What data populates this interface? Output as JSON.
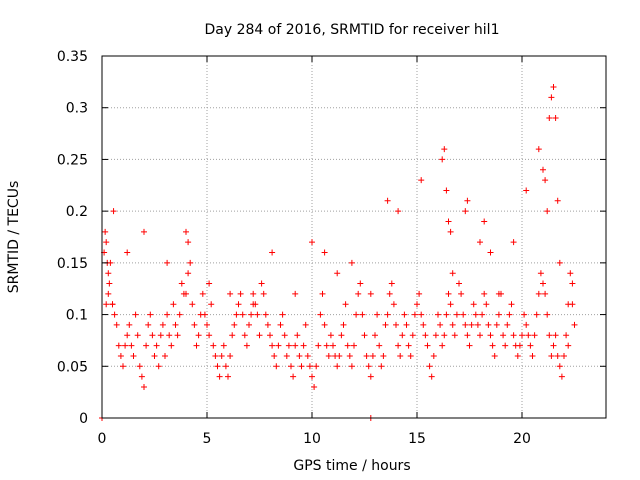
{
  "chart_data": {
    "type": "scatter",
    "title": "Day 284 of 2016, SRMTID for receiver hil1",
    "xlabel": "GPS time / hours",
    "ylabel": "SRMTID / TECUs",
    "xlim": [
      0,
      24
    ],
    "ylim": [
      0,
      0.35
    ],
    "xticks": [
      0,
      5,
      10,
      15,
      20
    ],
    "yticks": [
      0,
      0.05,
      0.1,
      0.15,
      0.2,
      0.25,
      0.3,
      0.35
    ],
    "xtick_labels": [
      "0",
      "5",
      "10",
      "15",
      "20"
    ],
    "ytick_labels": [
      "0",
      "0.05",
      "0.1",
      "0.15",
      "0.2",
      "0.25",
      "0.3",
      "0.35"
    ],
    "grid": true,
    "marker": "+",
    "color": "#ff0000",
    "series": [
      {
        "name": "SRMTID",
        "x": [
          0.0,
          0.1,
          0.15,
          0.2,
          0.25,
          0.3,
          0.35,
          0.4,
          0.5,
          0.55,
          0.6,
          0.7,
          0.8,
          0.9,
          1.0,
          1.1,
          1.2,
          1.3,
          1.4,
          1.5,
          1.6,
          1.7,
          1.8,
          1.9,
          2.0,
          2.1,
          2.2,
          2.3,
          2.4,
          2.5,
          2.6,
          2.7,
          2.8,
          2.9,
          3.0,
          3.1,
          3.2,
          3.3,
          3.4,
          3.5,
          3.6,
          3.7,
          3.8,
          3.9,
          4.0,
          4.1,
          4.2,
          4.3,
          4.4,
          4.5,
          4.6,
          4.7,
          4.8,
          4.9,
          5.0,
          5.1,
          5.2,
          5.3,
          5.4,
          5.5,
          5.6,
          5.7,
          5.8,
          5.9,
          6.0,
          6.1,
          6.2,
          6.3,
          6.4,
          6.5,
          6.6,
          6.7,
          6.8,
          6.9,
          7.0,
          7.1,
          7.2,
          7.3,
          7.4,
          7.5,
          7.6,
          7.7,
          7.8,
          7.9,
          8.0,
          8.1,
          8.2,
          8.3,
          8.4,
          8.5,
          8.6,
          8.7,
          8.8,
          8.9,
          9.0,
          9.1,
          9.2,
          9.3,
          9.4,
          9.5,
          9.6,
          9.7,
          9.8,
          9.9,
          10.0,
          10.1,
          10.2,
          10.3,
          10.4,
          10.5,
          10.6,
          10.7,
          10.8,
          10.9,
          11.0,
          11.1,
          11.2,
          11.3,
          11.4,
          11.5,
          11.6,
          11.7,
          11.8,
          11.9,
          12.0,
          12.1,
          12.2,
          12.3,
          12.4,
          12.5,
          12.6,
          12.7,
          12.8,
          12.9,
          13.0,
          13.1,
          13.2,
          13.3,
          13.4,
          13.5,
          13.6,
          13.7,
          13.8,
          13.9,
          14.0,
          14.1,
          14.2,
          14.3,
          14.4,
          14.5,
          14.6,
          14.7,
          14.8,
          14.9,
          15.0,
          15.1,
          15.2,
          15.3,
          15.4,
          15.5,
          15.6,
          15.7,
          15.8,
          15.9,
          16.0,
          16.1,
          16.2,
          16.3,
          16.4,
          16.5,
          16.6,
          16.7,
          16.8,
          16.9,
          17.0,
          17.1,
          17.2,
          17.3,
          17.4,
          17.5,
          17.6,
          17.7,
          17.8,
          17.9,
          18.0,
          18.1,
          18.2,
          18.3,
          18.4,
          18.5,
          18.6,
          18.7,
          18.8,
          18.9,
          19.0,
          19.1,
          19.2,
          19.3,
          19.4,
          19.5,
          19.6,
          19.7,
          19.8,
          19.9,
          20.0,
          20.1,
          20.2,
          20.3,
          20.4,
          20.5,
          20.6,
          20.7,
          20.8,
          20.9,
          21.0,
          21.1,
          21.2,
          21.3,
          21.4,
          21.5,
          21.6,
          21.7,
          21.8,
          21.9,
          22.0,
          22.1,
          22.2,
          22.3,
          22.4,
          22.5,
          0.2,
          0.3,
          0.5,
          1.2,
          2.0,
          3.1,
          4.0,
          4.1,
          5.1,
          6.1,
          7.2,
          8.1,
          9.2,
          10.0,
          10.6,
          11.2,
          11.9,
          12.8,
          13.6,
          14.1,
          15.2,
          16.2,
          16.3,
          16.4,
          16.5,
          16.6,
          16.7,
          17.3,
          17.4,
          18.0,
          18.2,
          18.5,
          18.9,
          19.6,
          20.2,
          20.8,
          21.0,
          21.1,
          21.2,
          21.3,
          21.4,
          21.5,
          21.6,
          21.7,
          21.8,
          22.2,
          22.4,
          12.8,
          0.0
        ],
        "y": [
          0.0,
          0.16,
          0.18,
          0.17,
          0.15,
          0.14,
          0.13,
          0.15,
          0.11,
          0.2,
          0.1,
          0.09,
          0.07,
          0.06,
          0.05,
          0.07,
          0.08,
          0.09,
          0.07,
          0.06,
          0.1,
          0.08,
          0.05,
          0.04,
          0.03,
          0.07,
          0.09,
          0.1,
          0.08,
          0.06,
          0.07,
          0.05,
          0.08,
          0.09,
          0.06,
          0.1,
          0.08,
          0.07,
          0.11,
          0.09,
          0.08,
          0.1,
          0.13,
          0.12,
          0.18,
          0.17,
          0.15,
          0.11,
          0.09,
          0.07,
          0.08,
          0.1,
          0.12,
          0.1,
          0.09,
          0.08,
          0.11,
          0.07,
          0.06,
          0.05,
          0.04,
          0.06,
          0.07,
          0.05,
          0.04,
          0.06,
          0.08,
          0.09,
          0.1,
          0.11,
          0.12,
          0.1,
          0.08,
          0.07,
          0.09,
          0.1,
          0.12,
          0.11,
          0.1,
          0.08,
          0.13,
          0.12,
          0.1,
          0.09,
          0.08,
          0.07,
          0.06,
          0.05,
          0.07,
          0.09,
          0.1,
          0.08,
          0.06,
          0.07,
          0.05,
          0.04,
          0.07,
          0.08,
          0.06,
          0.05,
          0.07,
          0.09,
          0.06,
          0.05,
          0.04,
          0.03,
          0.05,
          0.07,
          0.1,
          0.12,
          0.09,
          0.07,
          0.06,
          0.08,
          0.07,
          0.06,
          0.05,
          0.06,
          0.08,
          0.09,
          0.11,
          0.07,
          0.06,
          0.05,
          0.07,
          0.1,
          0.12,
          0.13,
          0.1,
          0.08,
          0.06,
          0.05,
          0.04,
          0.06,
          0.08,
          0.1,
          0.07,
          0.05,
          0.06,
          0.09,
          0.1,
          0.12,
          0.13,
          0.11,
          0.09,
          0.07,
          0.06,
          0.08,
          0.1,
          0.09,
          0.07,
          0.06,
          0.08,
          0.1,
          0.11,
          0.12,
          0.1,
          0.09,
          0.08,
          0.07,
          0.05,
          0.04,
          0.06,
          0.08,
          0.1,
          0.09,
          0.07,
          0.08,
          0.1,
          0.12,
          0.11,
          0.09,
          0.08,
          0.1,
          0.13,
          0.12,
          0.1,
          0.09,
          0.08,
          0.07,
          0.09,
          0.11,
          0.1,
          0.09,
          0.08,
          0.1,
          0.12,
          0.11,
          0.09,
          0.08,
          0.07,
          0.06,
          0.09,
          0.1,
          0.12,
          0.08,
          0.07,
          0.09,
          0.1,
          0.11,
          0.08,
          0.07,
          0.06,
          0.07,
          0.08,
          0.1,
          0.09,
          0.08,
          0.07,
          0.06,
          0.08,
          0.1,
          0.12,
          0.14,
          0.13,
          0.12,
          0.1,
          0.08,
          0.06,
          0.07,
          0.08,
          0.06,
          0.05,
          0.04,
          0.06,
          0.08,
          0.07,
          0.14,
          0.13,
          0.09,
          0.11,
          0.12,
          0.11,
          0.16,
          0.18,
          0.15,
          0.12,
          0.14,
          0.13,
          0.12,
          0.11,
          0.16,
          0.12,
          0.17,
          0.16,
          0.14,
          0.15,
          0.12,
          0.21,
          0.2,
          0.23,
          0.25,
          0.26,
          0.22,
          0.19,
          0.18,
          0.14,
          0.2,
          0.21,
          0.17,
          0.19,
          0.16,
          0.12,
          0.17,
          0.22,
          0.26,
          0.24,
          0.23,
          0.2,
          0.29,
          0.31,
          0.32,
          0.29,
          0.21,
          0.15,
          0.11,
          0.11,
          0.0,
          0.0
        ]
      }
    ]
  }
}
